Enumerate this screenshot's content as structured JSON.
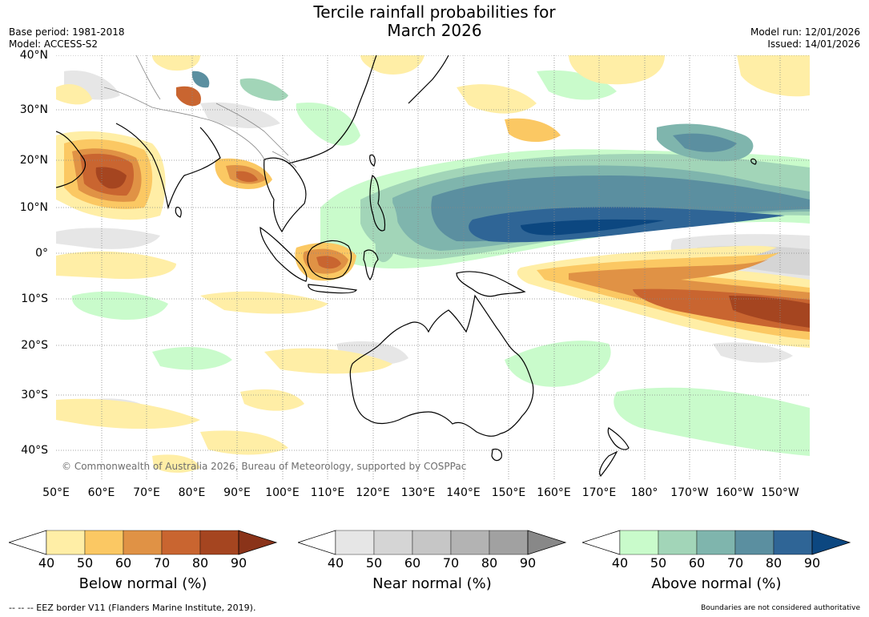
{
  "title_line1": "Tercile rainfall probabilities for",
  "title_line2": "March 2026",
  "meta": {
    "base_period": "Base period: 1981-2018",
    "model": "Model: ACCESS-S2",
    "model_run": "Model run: 12/01/2026",
    "issued": "Issued: 14/01/2026"
  },
  "copyright": "© Commonwealth of Australia 2026, Bureau of Meteorology, supported by COSPPac",
  "lat_ticks": [
    "40°N",
    "30°N",
    "20°N",
    "10°N",
    "0°",
    "10°S",
    "20°S",
    "30°S",
    "40°S"
  ],
  "lon_ticks": [
    "50°E",
    "60°E",
    "70°E",
    "80°E",
    "90°E",
    "100°E",
    "110°E",
    "120°E",
    "130°E",
    "140°E",
    "150°E",
    "160°E",
    "170°E",
    "180°",
    "170°W",
    "160°W",
    "150°W"
  ],
  "colorbars": [
    {
      "name": "below",
      "label": "Below normal (%)",
      "ticks": [
        "40",
        "50",
        "60",
        "70",
        "80",
        "90"
      ],
      "colors": [
        "#ffffff",
        "#ffeea6",
        "#fbc863",
        "#e09245",
        "#c96530",
        "#a54520",
        "#8a3319"
      ]
    },
    {
      "name": "near",
      "label": "Near normal (%)",
      "ticks": [
        "40",
        "50",
        "60",
        "70",
        "80",
        "90"
      ],
      "colors": [
        "#ffffff",
        "#e6e6e6",
        "#d5d5d5",
        "#c6c6c6",
        "#b3b3b3",
        "#a1a1a1",
        "#888888"
      ]
    },
    {
      "name": "above",
      "label": "Above normal (%)",
      "ticks": [
        "40",
        "50",
        "60",
        "70",
        "80",
        "90"
      ],
      "colors": [
        "#ffffff",
        "#c9fbcb",
        "#a2d5b8",
        "#7fb5ad",
        "#5b8fa0",
        "#2f6596",
        "#0c4780"
      ]
    }
  ],
  "footer_left": "--  --  -- EEZ border V11 (Flanders Marine Institute, 2019).",
  "footer_right": "Boundaries are not considered authoritative"
}
